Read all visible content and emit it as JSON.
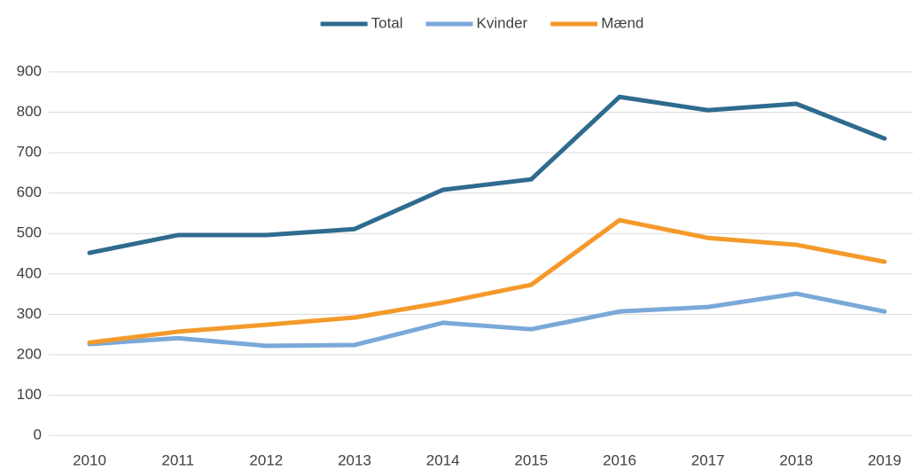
{
  "chart_data": {
    "type": "line",
    "categories": [
      "2010",
      "2011",
      "2012",
      "2013",
      "2014",
      "2015",
      "2016",
      "2017",
      "2018",
      "2019"
    ],
    "series": [
      {
        "name": "Total",
        "color": "#2e6b8f",
        "values": [
          452,
          496,
          496,
          511,
          608,
          634,
          838,
          805,
          821,
          735
        ]
      },
      {
        "name": "Kvinder",
        "color": "#7aa9d8",
        "values": [
          226,
          241,
          222,
          224,
          279,
          263,
          307,
          318,
          351,
          307
        ]
      },
      {
        "name": "Mænd",
        "color": "#f39a2b",
        "values": [
          230,
          257,
          274,
          292,
          329,
          373,
          533,
          489,
          472,
          430
        ]
      }
    ],
    "ylim": [
      0,
      900
    ],
    "yticks": [
      0,
      100,
      200,
      300,
      400,
      500,
      600,
      700,
      800,
      900
    ],
    "grid": true,
    "legend": "top"
  }
}
